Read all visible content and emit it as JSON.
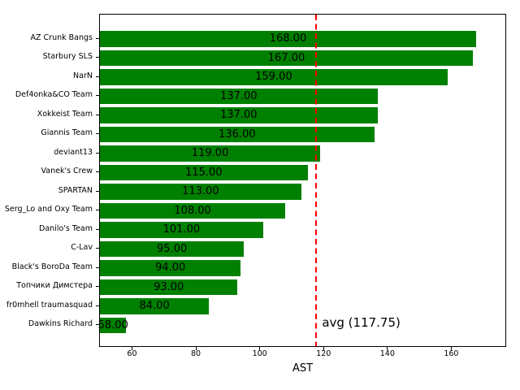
{
  "chart_data": {
    "type": "bar",
    "orientation": "horizontal",
    "title": "",
    "xlabel": "AST",
    "ylabel": "",
    "categories": [
      "AZ Crunk Bangs",
      "Starbury SLS",
      "NarN",
      "Def4onka&CO Team",
      "Xokkeist Team",
      "Giannis Team",
      "deviant13",
      "Vanek's Crew",
      "SPARTAN",
      "Serg_Lo and Oxy Team",
      "Danilo's Team",
      "C-Lav",
      "Black's BoroDa Team",
      "Топчики Димстера",
      "fr0mhell traumasquad",
      "Dawkins Richard"
    ],
    "values": [
      168,
      167,
      159,
      137,
      137,
      136,
      119,
      115,
      113,
      108,
      101,
      95,
      94,
      93,
      84,
      58
    ],
    "value_labels": [
      "168.00",
      "167.00",
      "159.00",
      "137.00",
      "137.00",
      "136.00",
      "119.00",
      "115.00",
      "113.00",
      "108.00",
      "101.00",
      "95.00",
      "94.00",
      "93.00",
      "84.00",
      "58.00"
    ],
    "xlim": [
      49.7,
      177.2
    ],
    "xticks": [
      60,
      80,
      100,
      120,
      140,
      160
    ],
    "xtick_labels": [
      "60",
      "80",
      "100",
      "120",
      "140",
      "160"
    ],
    "avg_line": {
      "value": 117.75,
      "label": "avg (117.75)",
      "color": "#ff0000",
      "style": "dashed"
    },
    "bar_color": "#008000",
    "text_color": "#000000",
    "background_color": "#ffffff",
    "grid": false,
    "legend": false
  }
}
